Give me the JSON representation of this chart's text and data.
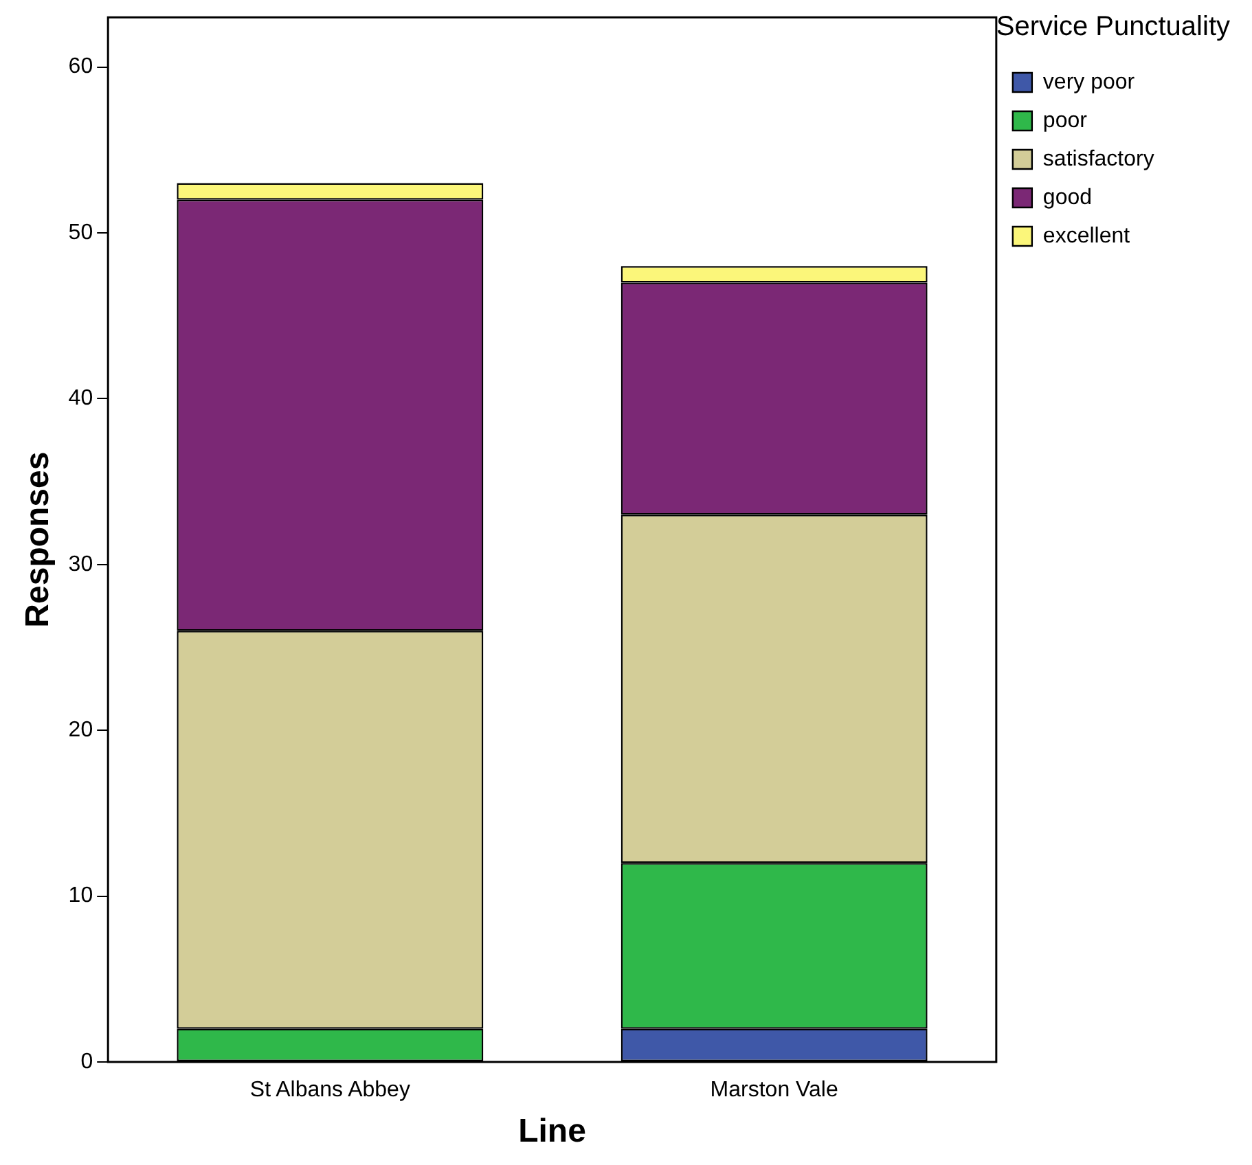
{
  "chart_data": {
    "type": "bar",
    "stacked": true,
    "xlabel": "Line",
    "ylabel": "Responses",
    "legend_title": "Service Punctuality",
    "legend": "top right",
    "grid": false,
    "categories": [
      "St Albans Abbey",
      "Marston Vale"
    ],
    "series": [
      {
        "name": "very poor",
        "color": "#3f58a8",
        "values": [
          0,
          2
        ]
      },
      {
        "name": "poor",
        "color": "#2fb84a",
        "values": [
          2,
          10
        ]
      },
      {
        "name": "satisfactory",
        "color": "#d3cd98",
        "values": [
          24,
          21
        ]
      },
      {
        "name": "good",
        "color": "#7b2875",
        "values": [
          26,
          14
        ]
      },
      {
        "name": "excellent",
        "color": "#fbf67a",
        "values": [
          1,
          1
        ]
      }
    ],
    "ylim": [
      0,
      63
    ],
    "yticks": [
      0,
      10,
      20,
      30,
      40,
      50,
      60
    ]
  }
}
